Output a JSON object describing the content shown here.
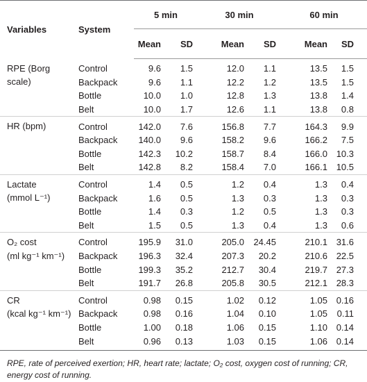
{
  "table": {
    "header": {
      "variables": "Variables",
      "system": "System",
      "times": [
        "5 min",
        "30 min",
        "60 min"
      ],
      "stats": [
        "Mean",
        "SD",
        "Mean",
        "SD",
        "Mean",
        "SD"
      ]
    },
    "groups": [
      {
        "label_lines": [
          "RPE (Borg",
          "scale)"
        ],
        "rows": [
          {
            "system": "Control",
            "values": [
              "9.6",
              "1.5",
              "12.0",
              "1.1",
              "13.5",
              "1.5"
            ]
          },
          {
            "system": "Backpack",
            "values": [
              "9.6",
              "1.1",
              "12.2",
              "1.2",
              "13.5",
              "1.5"
            ]
          },
          {
            "system": "Bottle",
            "values": [
              "10.0",
              "1.0",
              "12.8",
              "1.3",
              "13.8",
              "1.4"
            ]
          },
          {
            "system": "Belt",
            "values": [
              "10.0",
              "1.7",
              "12.6",
              "1.1",
              "13.8",
              "0.8"
            ]
          }
        ]
      },
      {
        "label_lines": [
          "HR (bpm)"
        ],
        "rows": [
          {
            "system": "Control",
            "values": [
              "142.0",
              "7.6",
              "156.8",
              "7.7",
              "164.3",
              "9.9"
            ]
          },
          {
            "system": "Backpack",
            "values": [
              "140.0",
              "9.6",
              "158.2",
              "9.6",
              "166.2",
              "7.5"
            ]
          },
          {
            "system": "Bottle",
            "values": [
              "142.3",
              "10.2",
              "158.7",
              "8.4",
              "166.0",
              "10.3"
            ]
          },
          {
            "system": "Belt",
            "values": [
              "142.8",
              "8.2",
              "158.4",
              "7.0",
              "166.1",
              "10.5"
            ]
          }
        ]
      },
      {
        "label_lines": [
          "Lactate",
          "(mmol L⁻¹)"
        ],
        "rows": [
          {
            "system": "Control",
            "values": [
              "1.4",
              "0.5",
              "1.2",
              "0.4",
              "1.3",
              "0.4"
            ]
          },
          {
            "system": "Backpack",
            "values": [
              "1.6",
              "0.5",
              "1.3",
              "0.3",
              "1.3",
              "0.3"
            ]
          },
          {
            "system": "Bottle",
            "values": [
              "1.4",
              "0.3",
              "1.2",
              "0.5",
              "1.3",
              "0.3"
            ]
          },
          {
            "system": "Belt",
            "values": [
              "1.5",
              "0.5",
              "1.3",
              "0.4",
              "1.3",
              "0.6"
            ]
          }
        ]
      },
      {
        "label_lines": [
          "O₂ cost",
          "(ml kg⁻¹ km⁻¹)"
        ],
        "rows": [
          {
            "system": "Control",
            "values": [
              "195.9",
              "31.0",
              "205.0",
              "24.45",
              "210.1",
              "31.6"
            ]
          },
          {
            "system": "Backpack",
            "values": [
              "196.3",
              "32.4",
              "207.3",
              "20.2",
              "210.6",
              "22.5"
            ]
          },
          {
            "system": "Bottle",
            "values": [
              "199.3",
              "35.2",
              "212.7",
              "30.4",
              "219.7",
              "27.3"
            ]
          },
          {
            "system": "Belt",
            "values": [
              "191.7",
              "26.8",
              "205.8",
              "30.5",
              "212.1",
              "28.3"
            ]
          }
        ]
      },
      {
        "label_lines": [
          "CR",
          "(kcal kg⁻¹ km⁻¹)"
        ],
        "rows": [
          {
            "system": "Control",
            "values": [
              "0.98",
              "0.15",
              "1.02",
              "0.12",
              "1.05",
              "0.16"
            ]
          },
          {
            "system": "Backpack",
            "values": [
              "0.98",
              "0.16",
              "1.04",
              "0.10",
              "1.05",
              "0.11"
            ]
          },
          {
            "system": "Bottle",
            "values": [
              "1.00",
              "0.18",
              "1.06",
              "0.15",
              "1.10",
              "0.14"
            ]
          },
          {
            "system": "Belt",
            "values": [
              "0.96",
              "0.13",
              "1.03",
              "0.15",
              "1.06",
              "0.14"
            ]
          }
        ]
      }
    ]
  },
  "footnote": "RPE, rate of perceived exertion; HR, heart rate; lactate; O₂ cost, oxygen cost of running; CR, energy cost of running."
}
